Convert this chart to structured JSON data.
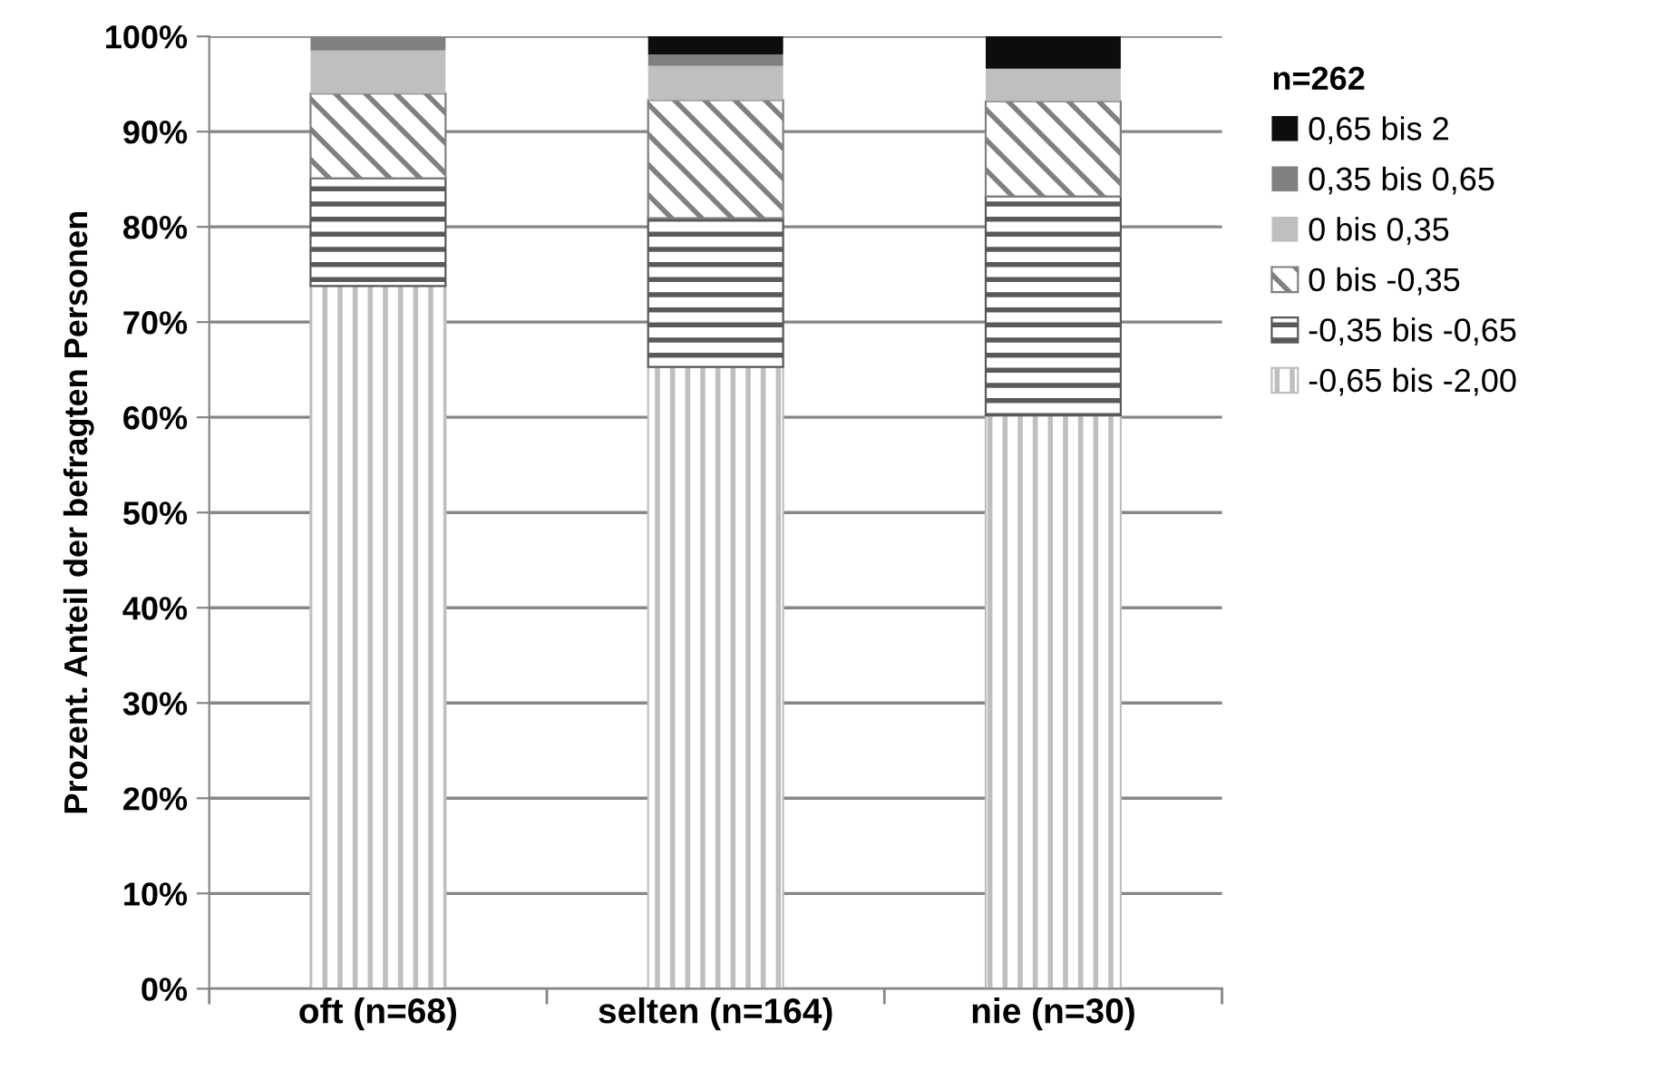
{
  "chart_data": {
    "type": "bar",
    "stacked": true,
    "ylabel": "Prozent. Anteil der befragten Personen",
    "legend_title": "n=262",
    "legend": "right",
    "categories": [
      "oft (n=68)",
      "selten (n=164)",
      "nie (n=30)"
    ],
    "series": [
      {
        "name": "-0,65 bis -2,00",
        "color": "#bfbfbf",
        "values": [
          73.8,
          65.3,
          60.2
        ]
      },
      {
        "name": "-0,35 bis -0,65",
        "color": "#595959",
        "values": [
          11.3,
          15.6,
          23.0
        ]
      },
      {
        "name": "0 bis -0,35",
        "color": "#808080",
        "values": [
          8.9,
          12.4,
          10.0
        ]
      },
      {
        "name": "0 bis 0,35",
        "color": "#bfbfbf",
        "values": [
          4.5,
          3.6,
          3.4
        ]
      },
      {
        "name": "0,35 bis 0,65",
        "color": "#808080",
        "values": [
          1.5,
          1.2,
          0
        ]
      },
      {
        "name": "0,65 bis 2",
        "color": "#0d0d0d",
        "values": [
          0,
          1.9,
          3.4
        ]
      }
    ],
    "ylim": [
      0,
      100
    ],
    "yticks": [
      {
        "value": 0,
        "label": "0%"
      },
      {
        "value": 10,
        "label": "10%"
      },
      {
        "value": 20,
        "label": "20%"
      },
      {
        "value": 30,
        "label": "30%"
      },
      {
        "value": 40,
        "label": "40%"
      },
      {
        "value": 50,
        "label": "50%"
      },
      {
        "value": 60,
        "label": "60%"
      },
      {
        "value": 70,
        "label": "70%"
      },
      {
        "value": 80,
        "label": "80%"
      },
      {
        "value": 90,
        "label": "90%"
      },
      {
        "value": 100,
        "label": "100%"
      }
    ],
    "grid": "y"
  }
}
